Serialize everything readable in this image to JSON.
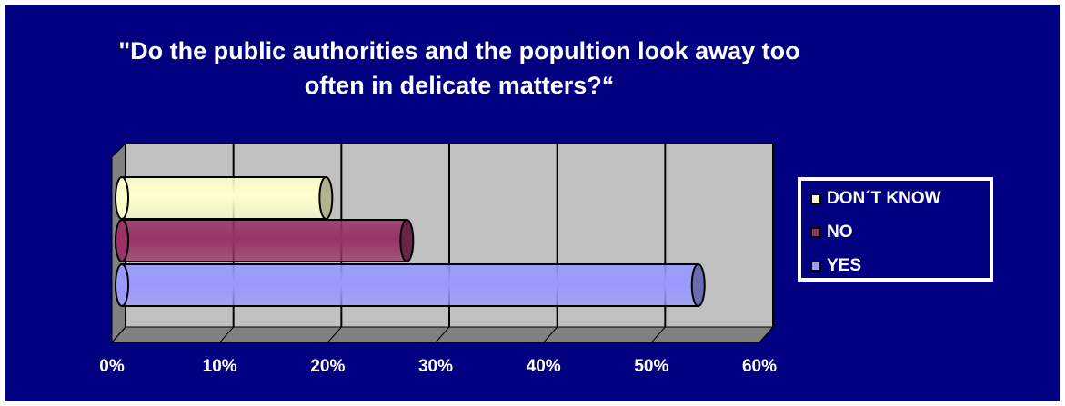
{
  "chart_data": {
    "type": "bar",
    "orientation": "horizontal",
    "style": "3d-cylinder",
    "title_line1": "\"Do the public authorities and the popultion look away too",
    "title_line2": "often in delicate matters?“",
    "categories": [
      "DON´T KNOW",
      "NO",
      "YES"
    ],
    "values": [
      20,
      27.5,
      54.5
    ],
    "colors": [
      "#FFFFCC",
      "#993366",
      "#9999FF"
    ],
    "x_ticks": [
      "0%",
      "10%",
      "20%",
      "30%",
      "40%",
      "50%",
      "60%"
    ],
    "xlim": [
      0,
      60
    ],
    "unit": "%",
    "grid": true,
    "legend_position": "right",
    "background_color": "#000080",
    "plot_area_color": "#C0C0C0"
  }
}
